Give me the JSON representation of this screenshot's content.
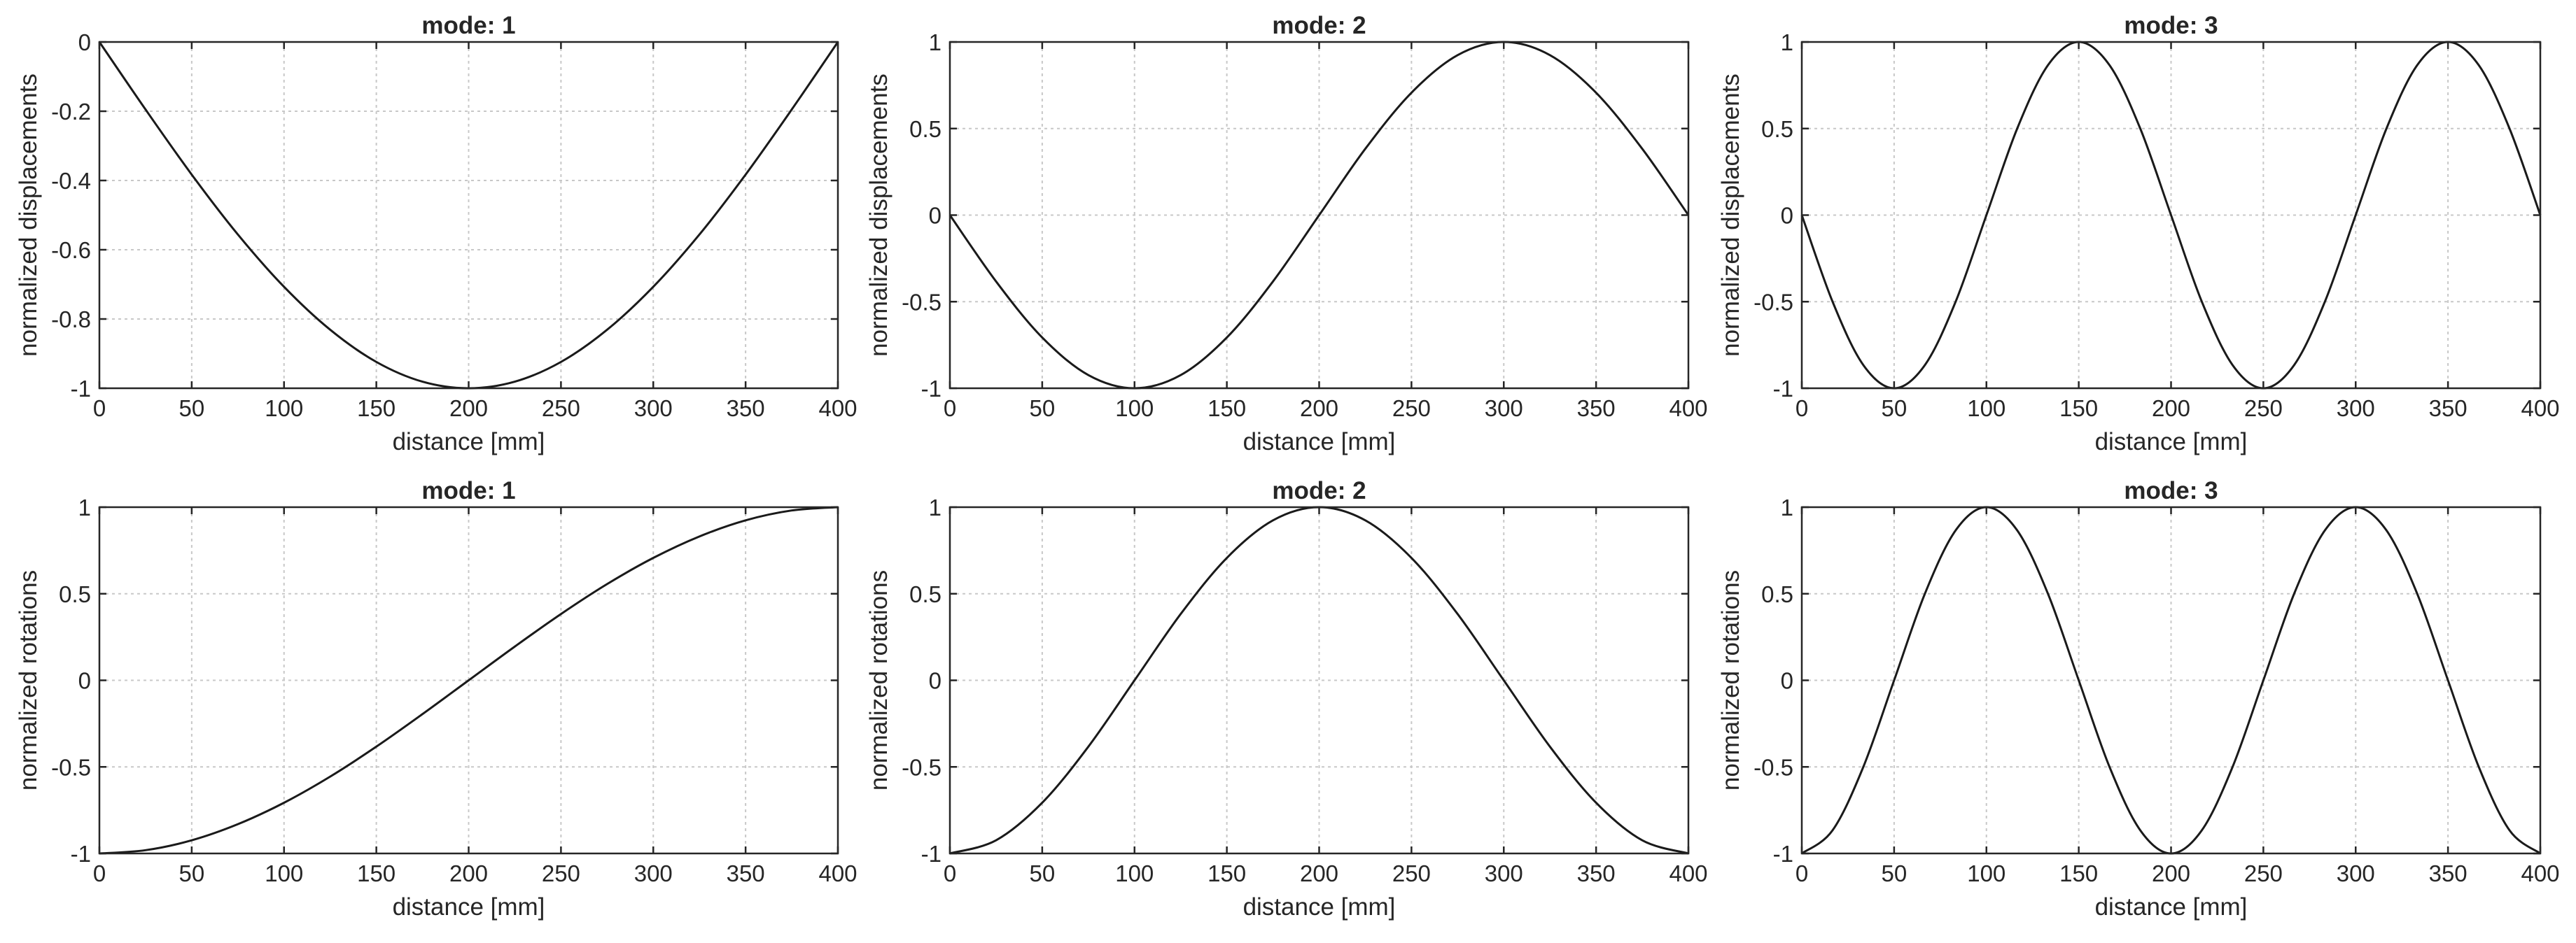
{
  "chart_data": [
    {
      "type": "line",
      "title": "mode: 1",
      "xlabel": "distance [mm]",
      "ylabel": "normalized displacements",
      "xlim": [
        0,
        400
      ],
      "ylim": [
        -1,
        0
      ],
      "xticks": [
        0,
        50,
        100,
        150,
        200,
        250,
        300,
        350,
        400
      ],
      "yticks": [
        -1,
        -0.8,
        -0.6,
        -0.4,
        -0.2,
        0
      ],
      "ytick_labels": [
        "-1",
        "-0.8",
        "-0.6",
        "-0.4",
        "-0.2",
        "0"
      ],
      "grid": true,
      "series": [
        {
          "x": [
            0,
            25,
            50,
            75,
            100,
            125,
            150,
            175,
            200,
            225,
            250,
            275,
            300,
            325,
            350,
            375,
            400
          ],
          "y": [
            0,
            -0.195,
            -0.383,
            -0.556,
            -0.707,
            -0.831,
            -0.924,
            -0.981,
            -1,
            -0.981,
            -0.924,
            -0.831,
            -0.707,
            -0.556,
            -0.383,
            -0.195,
            0
          ]
        }
      ]
    },
    {
      "type": "line",
      "title": "mode: 2",
      "xlabel": "distance [mm]",
      "ylabel": "normalized displacements",
      "xlim": [
        0,
        400
      ],
      "ylim": [
        -1,
        1
      ],
      "xticks": [
        0,
        50,
        100,
        150,
        200,
        250,
        300,
        350,
        400
      ],
      "yticks": [
        -1,
        -0.5,
        0,
        0.5,
        1
      ],
      "ytick_labels": [
        "-1",
        "-0.5",
        "0",
        "0.5",
        "1"
      ],
      "grid": true,
      "series": [
        {
          "x": [
            0,
            25,
            50,
            75,
            100,
            125,
            150,
            175,
            200,
            225,
            250,
            275,
            300,
            325,
            350,
            375,
            400
          ],
          "y": [
            0,
            -0.383,
            -0.707,
            -0.924,
            -1,
            -0.924,
            -0.707,
            -0.383,
            0,
            0.383,
            0.707,
            0.924,
            1,
            0.924,
            0.707,
            0.383,
            0
          ]
        }
      ]
    },
    {
      "type": "line",
      "title": "mode: 3",
      "xlabel": "distance [mm]",
      "ylabel": "normalized displacements",
      "xlim": [
        0,
        400
      ],
      "ylim": [
        -1,
        1
      ],
      "xticks": [
        0,
        50,
        100,
        150,
        200,
        250,
        300,
        350,
        400
      ],
      "yticks": [
        -1,
        -0.5,
        0,
        0.5,
        1
      ],
      "ytick_labels": [
        "-1",
        "-0.5",
        "0",
        "0.5",
        "1"
      ],
      "grid": true,
      "series": [
        {
          "x": [
            0,
            16.67,
            33.33,
            50,
            66.67,
            83.33,
            100,
            116.67,
            133.33,
            150,
            166.67,
            183.33,
            200,
            216.67,
            233.33,
            250,
            266.67,
            283.33,
            300,
            316.67,
            333.33,
            350,
            366.67,
            383.33,
            400
          ],
          "y": [
            0,
            -0.5,
            -0.866,
            -1,
            -0.866,
            -0.5,
            0,
            0.5,
            0.866,
            1,
            0.866,
            0.5,
            0,
            -0.5,
            -0.866,
            -1,
            -0.866,
            -0.5,
            0,
            0.5,
            0.866,
            1,
            0.866,
            0.5,
            0
          ]
        }
      ]
    },
    {
      "type": "line",
      "title": "mode: 1",
      "xlabel": "distance [mm]",
      "ylabel": "normalized rotations",
      "xlim": [
        0,
        400
      ],
      "ylim": [
        -1,
        1
      ],
      "xticks": [
        0,
        50,
        100,
        150,
        200,
        250,
        300,
        350,
        400
      ],
      "yticks": [
        -1,
        -0.5,
        0,
        0.5,
        1
      ],
      "ytick_labels": [
        "-1",
        "-0.5",
        "0",
        "0.5",
        "1"
      ],
      "grid": true,
      "series": [
        {
          "x": [
            0,
            25,
            50,
            75,
            100,
            125,
            150,
            175,
            200,
            225,
            250,
            275,
            300,
            325,
            350,
            375,
            400
          ],
          "y": [
            -1,
            -0.981,
            -0.924,
            -0.831,
            -0.707,
            -0.556,
            -0.383,
            -0.195,
            0,
            0.195,
            0.383,
            0.556,
            0.707,
            0.831,
            0.924,
            0.981,
            1
          ]
        }
      ]
    },
    {
      "type": "line",
      "title": "mode: 2",
      "xlabel": "distance [mm]",
      "ylabel": "normalized rotations",
      "xlim": [
        0,
        400
      ],
      "ylim": [
        -1,
        1
      ],
      "xticks": [
        0,
        50,
        100,
        150,
        200,
        250,
        300,
        350,
        400
      ],
      "yticks": [
        -1,
        -0.5,
        0,
        0.5,
        1
      ],
      "ytick_labels": [
        "-1",
        "-0.5",
        "0",
        "0.5",
        "1"
      ],
      "grid": true,
      "series": [
        {
          "x": [
            0,
            25,
            50,
            75,
            100,
            125,
            150,
            175,
            200,
            225,
            250,
            275,
            300,
            325,
            350,
            375,
            400
          ],
          "y": [
            -1,
            -0.924,
            -0.707,
            -0.383,
            0,
            0.383,
            0.707,
            0.924,
            1,
            0.924,
            0.707,
            0.383,
            0,
            -0.383,
            -0.707,
            -0.924,
            -1
          ]
        }
      ]
    },
    {
      "type": "line",
      "title": "mode: 3",
      "xlabel": "distance [mm]",
      "ylabel": "normalized rotations",
      "xlim": [
        0,
        400
      ],
      "ylim": [
        -1,
        1
      ],
      "xticks": [
        0,
        50,
        100,
        150,
        200,
        250,
        300,
        350,
        400
      ],
      "yticks": [
        -1,
        -0.5,
        0,
        0.5,
        1
      ],
      "ytick_labels": [
        "-1",
        "-0.5",
        "0",
        "0.5",
        "1"
      ],
      "grid": true,
      "series": [
        {
          "x": [
            0,
            16.67,
            33.33,
            50,
            66.67,
            83.33,
            100,
            116.67,
            133.33,
            150,
            166.67,
            183.33,
            200,
            216.67,
            233.33,
            250,
            266.67,
            283.33,
            300,
            316.67,
            333.33,
            350,
            366.67,
            383.33,
            400
          ],
          "y": [
            -1,
            -0.866,
            -0.5,
            0,
            0.5,
            0.866,
            1,
            0.866,
            0.5,
            0,
            -0.5,
            -0.866,
            -1,
            -0.866,
            -0.5,
            0,
            0.5,
            0.866,
            1,
            0.866,
            0.5,
            0,
            -0.5,
            -0.866,
            -1
          ]
        }
      ]
    }
  ]
}
